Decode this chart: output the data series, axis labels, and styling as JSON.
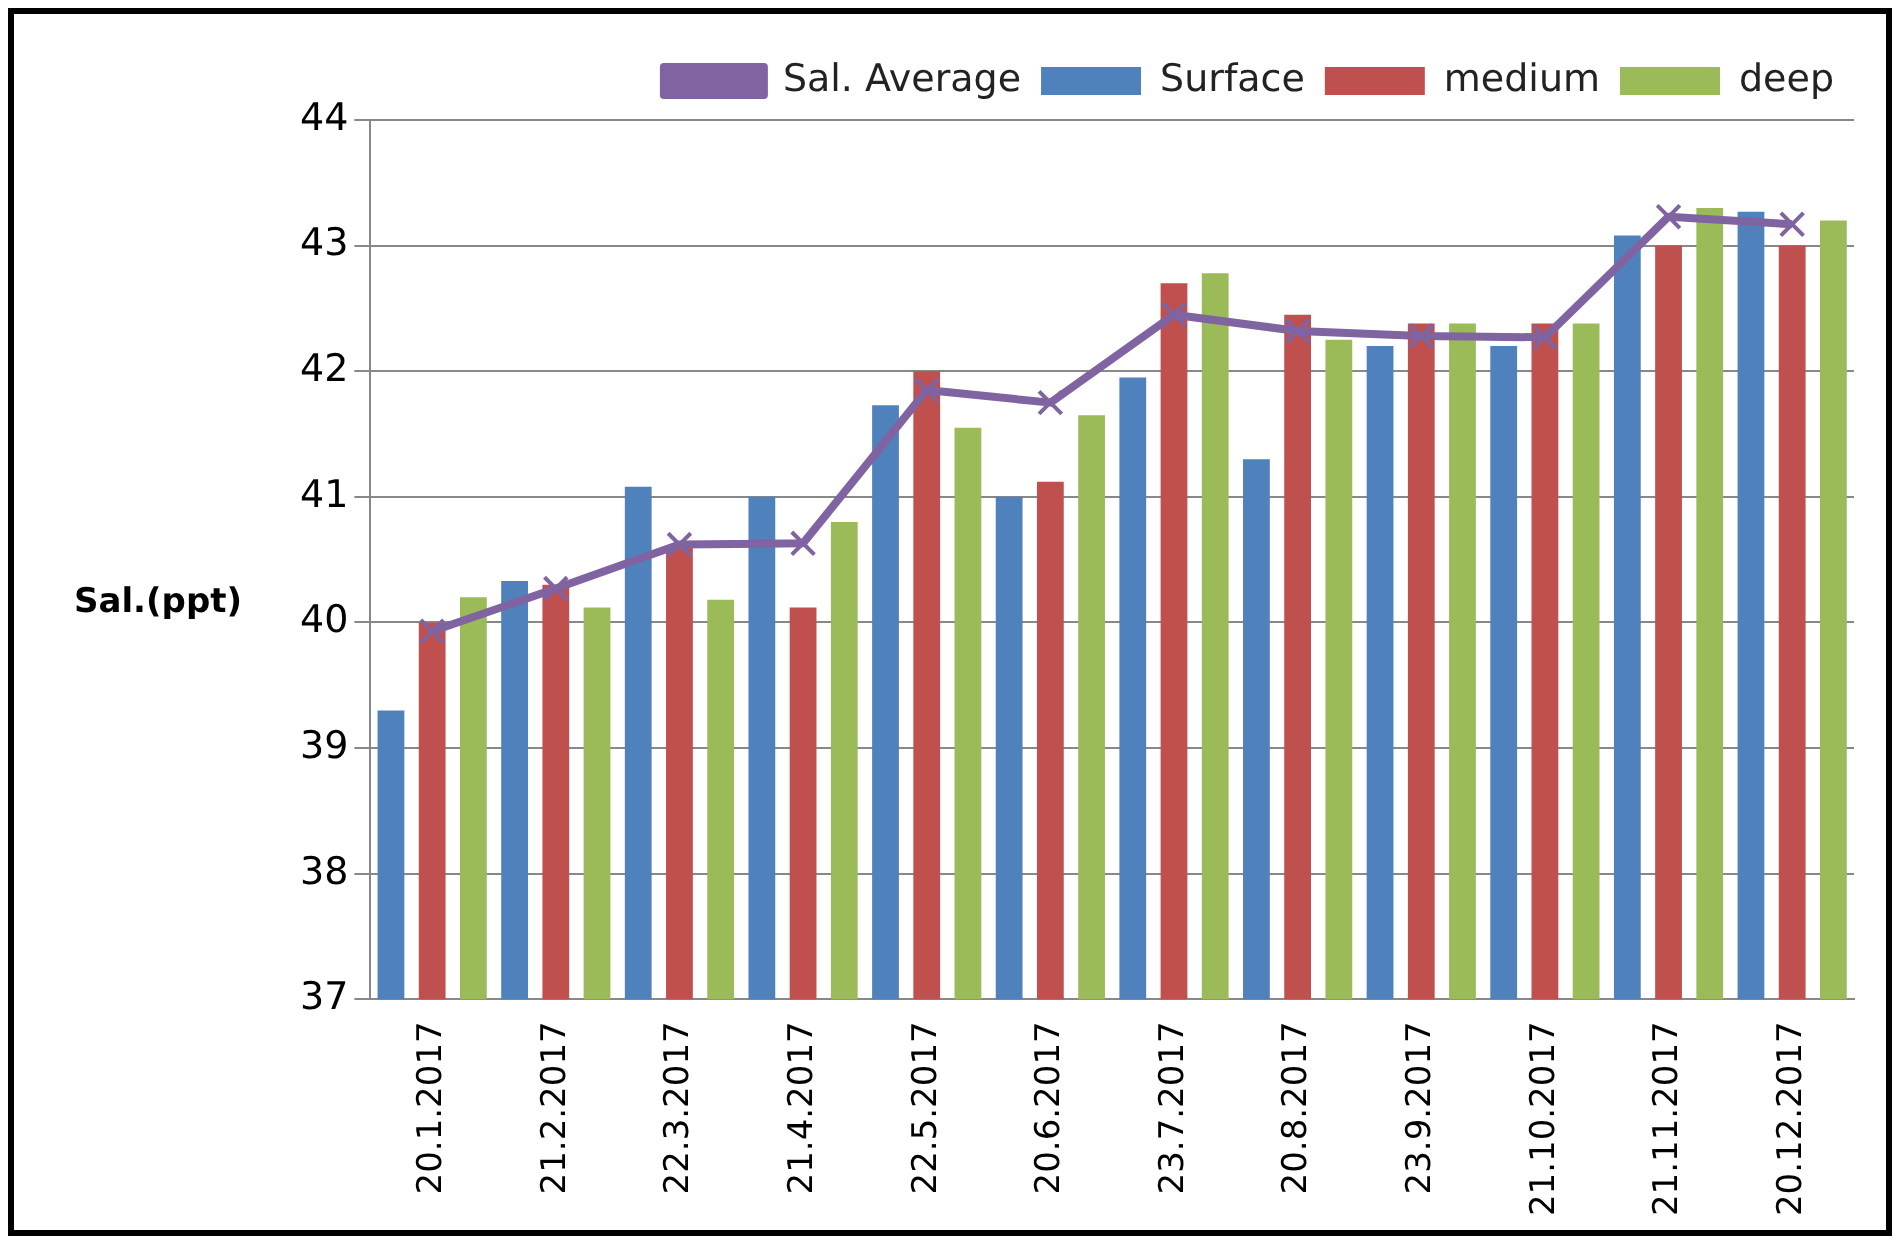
{
  "chart_data": {
    "type": "bar",
    "ylabel": "Sal.(ppt)",
    "categories": [
      "20.1.2017",
      "21.2.2017",
      "22.3.2017",
      "21.4.2017",
      "22.5.2017",
      "20.6.2017",
      "23.7.2017",
      "20.8.2017",
      "23.9.2017",
      "21.10.2017",
      "21.11.2017",
      "20.12.2017"
    ],
    "series": [
      {
        "name": "Surface",
        "color": "#4f81bd",
        "values": [
          39.3,
          40.33,
          41.08,
          41.0,
          41.73,
          41.0,
          41.95,
          41.3,
          42.2,
          42.2,
          43.08,
          43.27
        ]
      },
      {
        "name": "medium",
        "color": "#c0504d",
        "values": [
          40.0,
          40.3,
          40.6,
          40.12,
          42.0,
          41.12,
          42.7,
          42.45,
          42.38,
          42.38,
          43.0,
          43.0
        ]
      },
      {
        "name": "deep",
        "color": "#9bbb59",
        "values": [
          40.2,
          40.12,
          40.18,
          40.8,
          41.55,
          41.65,
          42.78,
          42.25,
          42.38,
          42.38,
          43.3,
          43.2
        ]
      },
      {
        "name": "Sal. Average",
        "type": "line",
        "color": "#8064a2",
        "marker": "cross",
        "values": [
          39.93,
          40.27,
          40.62,
          40.63,
          41.85,
          41.75,
          42.45,
          42.32,
          42.28,
          42.27,
          43.23,
          43.17
        ]
      }
    ],
    "ylim": [
      37,
      44
    ],
    "yticks": [
      37,
      38,
      39,
      40,
      41,
      42,
      43,
      44
    ],
    "grid": "y",
    "legend": "top"
  }
}
